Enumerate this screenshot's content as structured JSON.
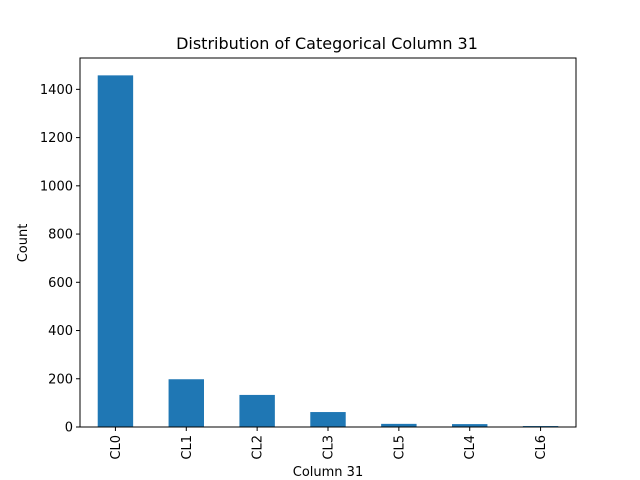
{
  "chart_data": {
    "type": "bar",
    "title": "Distribution of Categorical Column 31",
    "xlabel": "Column 31",
    "ylabel": "Count",
    "categories": [
      "CL0",
      "CL1",
      "CL2",
      "CL3",
      "CL5",
      "CL4",
      "CL6"
    ],
    "values": [
      1458,
      198,
      133,
      62,
      13,
      12,
      4
    ],
    "ylim": [
      0,
      1400
    ],
    "yticks": [
      0,
      200,
      400,
      600,
      800,
      1000,
      1200,
      1400
    ],
    "bar_color": "#1f77b4",
    "grid": false,
    "legend": "none"
  }
}
